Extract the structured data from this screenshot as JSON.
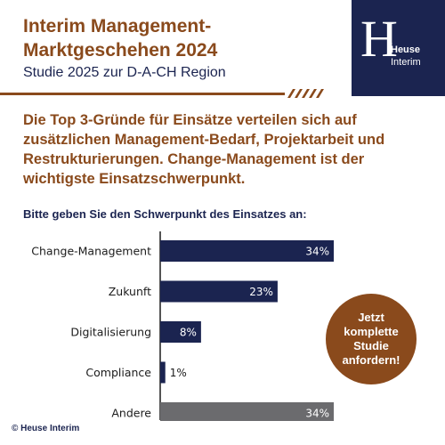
{
  "header": {
    "title": "Interim Management-\nMarktgeschehen 2024",
    "subtitle": "Studie 2025 zur D-A-CH Region"
  },
  "logo": {
    "mark": "H",
    "line1": "Heuse",
    "line2": "Interim"
  },
  "headline": "Die Top 3-Gründe für Einsätze verteilen sich auf zusätzlichen Management-Bedarf, Projektarbeit und Restrukturierungen. Change-Management ist der wichtigste Einsatzschwerpunkt.",
  "question": "Bitte geben Sie den Schwerpunkt des Einsatzes an:",
  "cta": {
    "label": "Jetzt\nkomplette\nStudie\nanfordern!"
  },
  "copyright": "© Heuse Interim",
  "colors": {
    "brown": "#8a4a1c",
    "navy": "#1b2450",
    "gray": "#6b6b6e"
  },
  "chart_data": {
    "type": "bar",
    "orientation": "horizontal",
    "title": "Bitte geben Sie den Schwerpunkt des Einsatzes an:",
    "categories": [
      "Change-Management",
      "Zukunft",
      "Digitalisierung",
      "Compliance",
      "Andere"
    ],
    "values": [
      34,
      23,
      8,
      1,
      34
    ],
    "labels": [
      "34%",
      "23%",
      "8%",
      "1%",
      "34%"
    ],
    "bar_colors": [
      "#1b2450",
      "#1b2450",
      "#1b2450",
      "#1b2450",
      "#6b6b6e"
    ],
    "unit": "%",
    "xlim": [
      0,
      40
    ],
    "grid": false,
    "legend": "none"
  }
}
